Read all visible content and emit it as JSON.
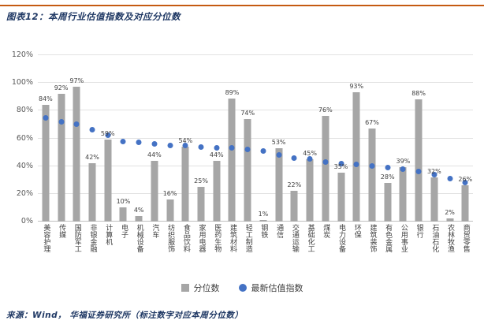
{
  "title": "图表12：本周行业估值指数及对应分位数",
  "source_note": "来源：Wind， 华福证券研究所（标注数字对应本周分位数）",
  "legend": {
    "bar_label": "分位数",
    "dot_label": "最新估值指数"
  },
  "colors": {
    "accent_rule": "#C55A11",
    "title_text": "#1F3864",
    "bar": "#A6A6A6",
    "dot": "#4472C4",
    "grid": "#E2E2E2",
    "axis_line": "#BFBFBF",
    "axis_text": "#595959",
    "label_text": "#404040"
  },
  "chart_data": {
    "type": "bar",
    "subtype": "column + scatter combo",
    "title": "本周行业估值指数及对应分位数",
    "annotation_note": "标注数字对应本周分位数",
    "categories": [
      "美容护理",
      "传媒",
      "国防军工",
      "非银金融",
      "计算机",
      "电子",
      "机械设备",
      "汽车",
      "纺织服饰",
      "食品饮料",
      "家用电器",
      "医药生物",
      "建筑材料",
      "轻工制造",
      "钢铁",
      "通信",
      "交通运输",
      "基础化工",
      "煤炭",
      "电力设备",
      "环保",
      "建筑装饰",
      "有色金属",
      "公用事业",
      "银行",
      "石油石化",
      "农林牧渔",
      "商贸零售"
    ],
    "series": [
      {
        "name": "分位数",
        "type": "bar",
        "unit": "%",
        "values": [
          84,
          92,
          97,
          42,
          59,
          10,
          4,
          44,
          16,
          54,
          25,
          44,
          89,
          74,
          1,
          53,
          22,
          45,
          76,
          35,
          93,
          67,
          28,
          39,
          88,
          32,
          2,
          26
        ]
      },
      {
        "name": "最新估值指数",
        "type": "scatter",
        "unit": "%",
        "values": [
          75,
          72,
          70,
          66,
          62,
          58,
          57,
          56,
          55,
          55,
          54,
          53,
          53,
          52,
          51,
          48,
          46,
          45,
          43,
          42,
          41,
          40,
          39,
          38,
          36,
          34,
          31,
          28
        ]
      }
    ],
    "ylim": [
      0,
      120
    ],
    "yticks": [
      "0%",
      "20%",
      "40%",
      "60%",
      "80%",
      "100%",
      "120%"
    ],
    "grid": true,
    "legend_position": "bottom"
  }
}
